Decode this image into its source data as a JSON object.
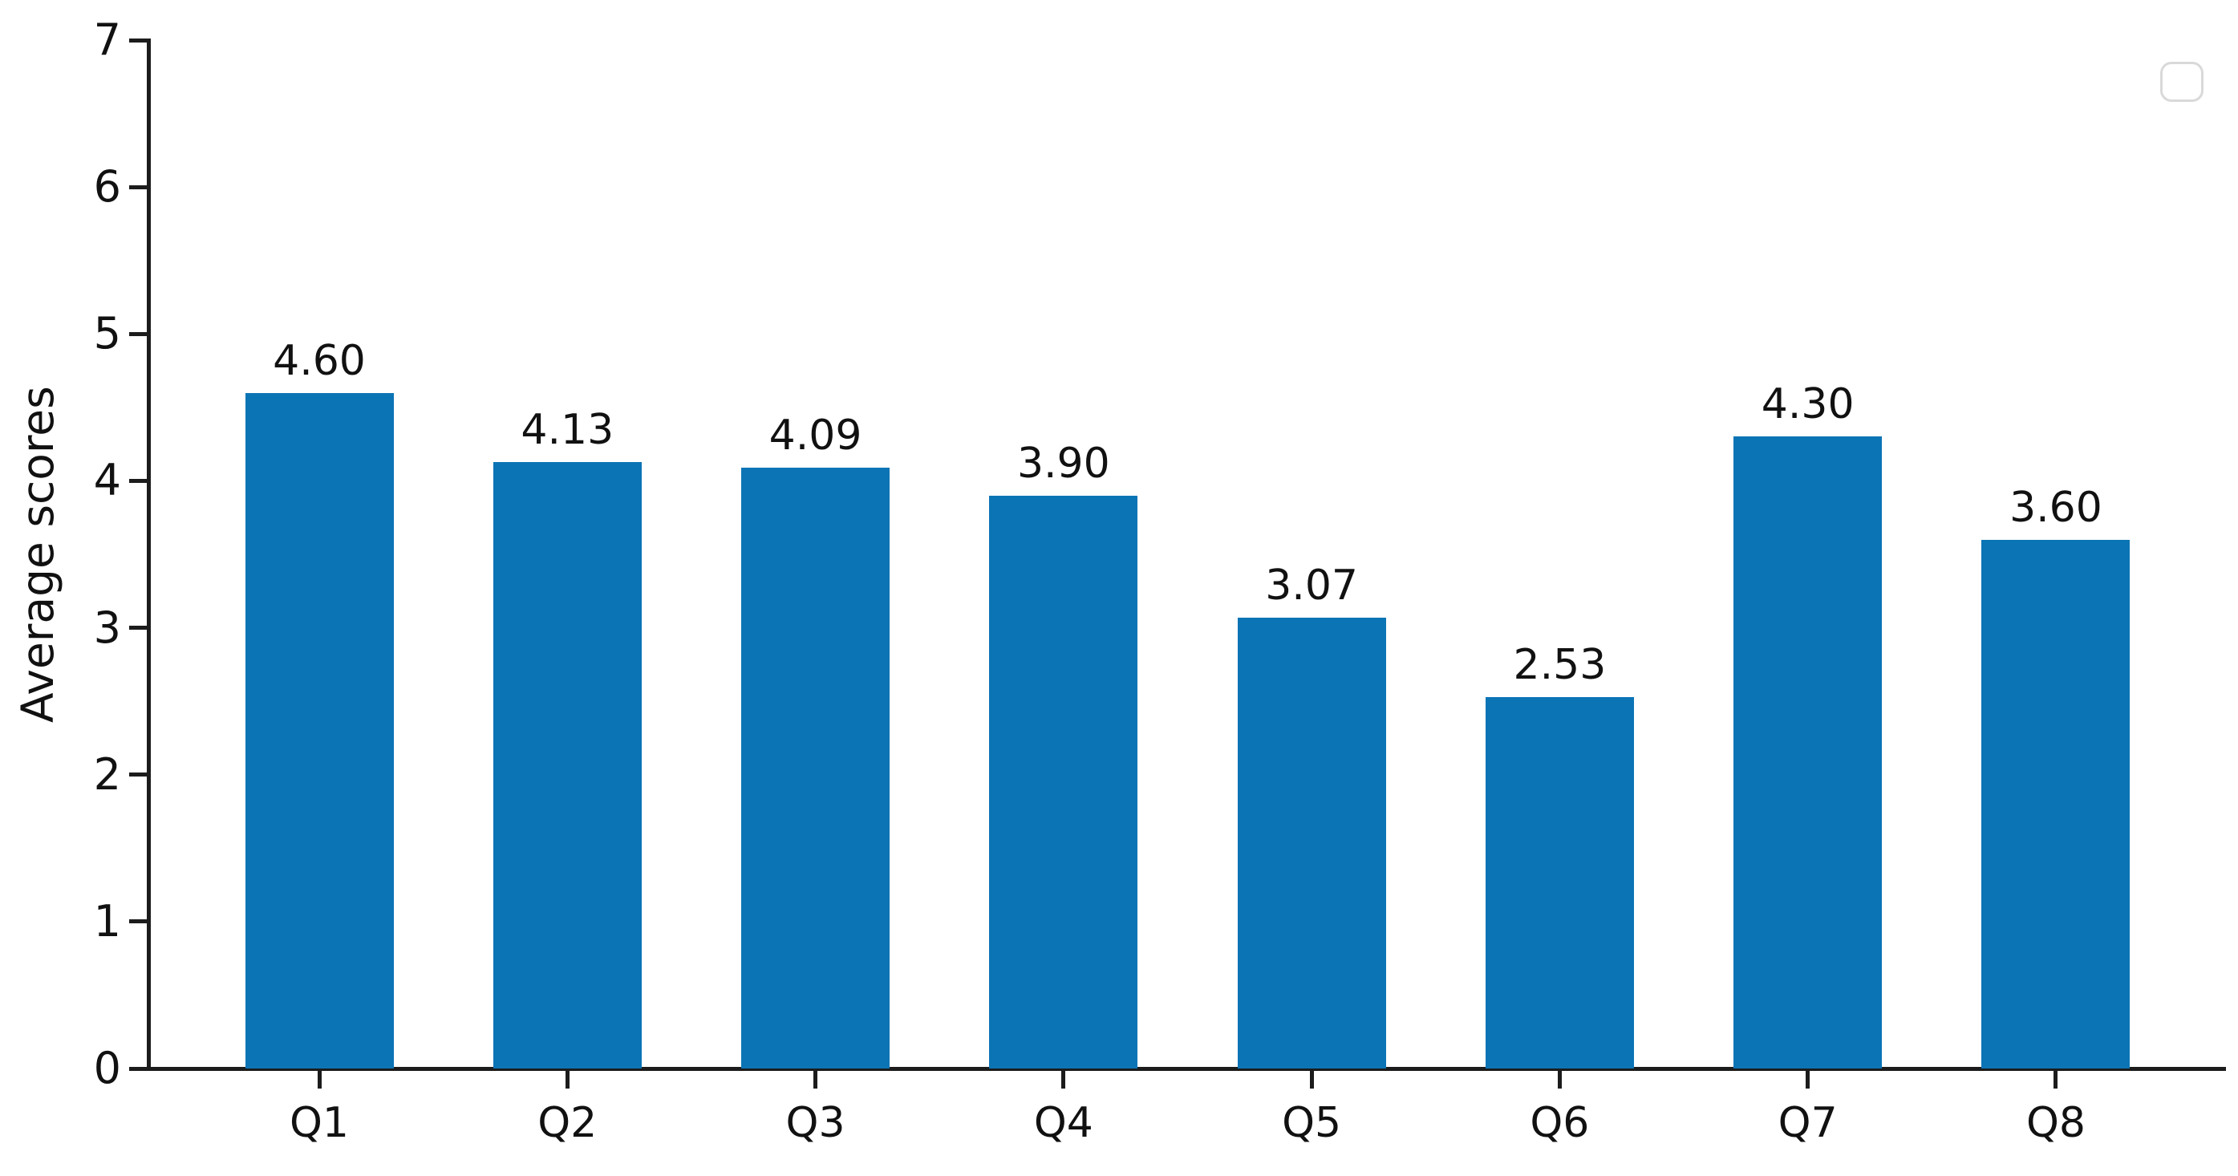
{
  "figure": {
    "background": "#ffffff"
  },
  "chart_data": {
    "type": "bar",
    "title": "",
    "xlabel": "",
    "ylabel": "Average scores",
    "categories": [
      "Q1",
      "Q2",
      "Q3",
      "Q4",
      "Q5",
      "Q6",
      "Q7",
      "Q8"
    ],
    "values": [
      4.6,
      4.13,
      4.09,
      3.9,
      3.07,
      2.53,
      4.3,
      3.6
    ],
    "bar_labels": [
      "4.60",
      "4.13",
      "4.09",
      "3.90",
      "3.07",
      "2.53",
      "4.30",
      "3.60"
    ],
    "ylim": [
      0,
      7
    ],
    "yticks": [
      "0",
      "1",
      "2",
      "3",
      "4",
      "5",
      "6",
      "7"
    ],
    "grid": false,
    "legend_position": "upper-right-empty-box",
    "bar_color": "#0b74b5",
    "axis_color": "#1c1c1c",
    "text_color": "#111111",
    "legend_border_color": "#d9d9d9"
  }
}
